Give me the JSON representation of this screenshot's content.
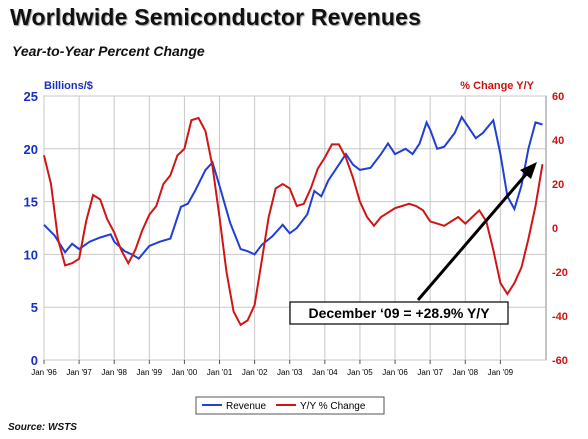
{
  "header": {
    "title": "Worldwide Semiconductor Revenues",
    "subtitle": "Year-to-Year Percent Change"
  },
  "footer": {
    "source": "Source: WSTS"
  },
  "colors": {
    "revenue": "#1f3fd6",
    "yoy": "#d01515",
    "left_axis": "#1a2fbf",
    "right_axis": "#cc1111",
    "grid": "#c8c8c8"
  },
  "chart_data": {
    "type": "line",
    "left_axis_label": "Billions/$",
    "right_axis_label": "% Change Y/Y",
    "ylim_left": [
      0,
      25
    ],
    "ylim_right": [
      -60,
      60
    ],
    "yticks_left": [
      0,
      5,
      10,
      15,
      20,
      25
    ],
    "yticks_right": [
      -60,
      -40,
      -20,
      0,
      20,
      40,
      60
    ],
    "x_tick_labels": [
      "Jan '96",
      "Jan '97",
      "Jan '98",
      "Jan '99",
      "Jan '00",
      "Jan '01",
      "Jan '02",
      "Jan '03",
      "Jan '04",
      "Jan '05",
      "Jan '06",
      "Jan '07",
      "Jan '08",
      "Jan '09"
    ],
    "grid": true,
    "legend_position": "bottom",
    "annotation": "December ‘09 = +28.9% Y/Y",
    "series": [
      {
        "name": "Revenue",
        "axis": "left",
        "points": [
          [
            1996.0,
            12.8
          ],
          [
            1996.3,
            11.8
          ],
          [
            1996.6,
            10.2
          ],
          [
            1996.8,
            11.0
          ],
          [
            1997.0,
            10.5
          ],
          [
            1997.3,
            11.2
          ],
          [
            1997.6,
            11.6
          ],
          [
            1997.9,
            11.9
          ],
          [
            1998.0,
            11.2
          ],
          [
            1998.3,
            10.3
          ],
          [
            1998.5,
            10.0
          ],
          [
            1998.7,
            9.6
          ],
          [
            1999.0,
            10.8
          ],
          [
            1999.3,
            11.2
          ],
          [
            1999.6,
            11.5
          ],
          [
            1999.9,
            14.5
          ],
          [
            2000.1,
            14.8
          ],
          [
            2000.3,
            16.0
          ],
          [
            2000.6,
            18.0
          ],
          [
            2000.8,
            18.7
          ],
          [
            2001.0,
            16.5
          ],
          [
            2001.3,
            13.0
          ],
          [
            2001.6,
            10.5
          ],
          [
            2001.8,
            10.3
          ],
          [
            2002.0,
            10.0
          ],
          [
            2002.2,
            10.9
          ],
          [
            2002.5,
            11.7
          ],
          [
            2002.8,
            12.8
          ],
          [
            2003.0,
            12.0
          ],
          [
            2003.2,
            12.5
          ],
          [
            2003.5,
            13.8
          ],
          [
            2003.7,
            16.0
          ],
          [
            2003.9,
            15.5
          ],
          [
            2004.1,
            17.0
          ],
          [
            2004.4,
            18.5
          ],
          [
            2004.6,
            19.5
          ],
          [
            2004.8,
            18.5
          ],
          [
            2005.0,
            18.0
          ],
          [
            2005.3,
            18.2
          ],
          [
            2005.6,
            19.5
          ],
          [
            2005.8,
            20.5
          ],
          [
            2006.0,
            19.5
          ],
          [
            2006.3,
            20.0
          ],
          [
            2006.5,
            19.5
          ],
          [
            2006.7,
            20.5
          ],
          [
            2006.9,
            22.5
          ],
          [
            2007.0,
            21.8
          ],
          [
            2007.2,
            20.0
          ],
          [
            2007.4,
            20.2
          ],
          [
            2007.7,
            21.5
          ],
          [
            2007.9,
            23.0
          ],
          [
            2008.1,
            22.0
          ],
          [
            2008.3,
            21.0
          ],
          [
            2008.5,
            21.5
          ],
          [
            2008.8,
            22.7
          ],
          [
            2009.0,
            19.5
          ],
          [
            2009.2,
            15.5
          ],
          [
            2009.4,
            14.3
          ],
          [
            2009.6,
            16.5
          ],
          [
            2009.8,
            20.0
          ],
          [
            2010.0,
            22.5
          ],
          [
            2010.2,
            22.3
          ]
        ]
      },
      {
        "name": "Y/Y % Change",
        "axis": "right",
        "points": [
          [
            1996.0,
            33
          ],
          [
            1996.2,
            20
          ],
          [
            1996.4,
            -5
          ],
          [
            1996.6,
            -17
          ],
          [
            1996.8,
            -16
          ],
          [
            1997.0,
            -14
          ],
          [
            1997.2,
            3
          ],
          [
            1997.4,
            15
          ],
          [
            1997.6,
            13
          ],
          [
            1997.8,
            4
          ],
          [
            1998.0,
            -2
          ],
          [
            1998.2,
            -10
          ],
          [
            1998.4,
            -16
          ],
          [
            1998.6,
            -10
          ],
          [
            1998.8,
            -1
          ],
          [
            1999.0,
            6
          ],
          [
            1999.2,
            10
          ],
          [
            1999.4,
            20
          ],
          [
            1999.6,
            24
          ],
          [
            1999.8,
            33
          ],
          [
            2000.0,
            36
          ],
          [
            2000.2,
            49
          ],
          [
            2000.4,
            50
          ],
          [
            2000.6,
            44
          ],
          [
            2000.8,
            28
          ],
          [
            2001.0,
            5
          ],
          [
            2001.2,
            -20
          ],
          [
            2001.4,
            -38
          ],
          [
            2001.6,
            -44
          ],
          [
            2001.8,
            -42
          ],
          [
            2002.0,
            -35
          ],
          [
            2002.2,
            -15
          ],
          [
            2002.4,
            5
          ],
          [
            2002.6,
            18
          ],
          [
            2002.8,
            20
          ],
          [
            2003.0,
            18
          ],
          [
            2003.2,
            10
          ],
          [
            2003.4,
            11
          ],
          [
            2003.6,
            18
          ],
          [
            2003.8,
            27
          ],
          [
            2004.0,
            32
          ],
          [
            2004.2,
            38
          ],
          [
            2004.4,
            38
          ],
          [
            2004.6,
            32
          ],
          [
            2004.8,
            23
          ],
          [
            2005.0,
            12
          ],
          [
            2005.2,
            5
          ],
          [
            2005.4,
            1
          ],
          [
            2005.6,
            5
          ],
          [
            2005.8,
            7
          ],
          [
            2006.0,
            9
          ],
          [
            2006.2,
            10
          ],
          [
            2006.4,
            11
          ],
          [
            2006.6,
            10
          ],
          [
            2006.8,
            8
          ],
          [
            2007.0,
            3
          ],
          [
            2007.2,
            2
          ],
          [
            2007.4,
            1
          ],
          [
            2007.6,
            3
          ],
          [
            2007.8,
            5
          ],
          [
            2008.0,
            2
          ],
          [
            2008.2,
            5
          ],
          [
            2008.4,
            8
          ],
          [
            2008.6,
            3
          ],
          [
            2008.8,
            -10
          ],
          [
            2009.0,
            -25
          ],
          [
            2009.2,
            -30
          ],
          [
            2009.4,
            -25
          ],
          [
            2009.6,
            -18
          ],
          [
            2009.8,
            -5
          ],
          [
            2010.0,
            10
          ],
          [
            2010.2,
            29
          ]
        ]
      }
    ]
  }
}
